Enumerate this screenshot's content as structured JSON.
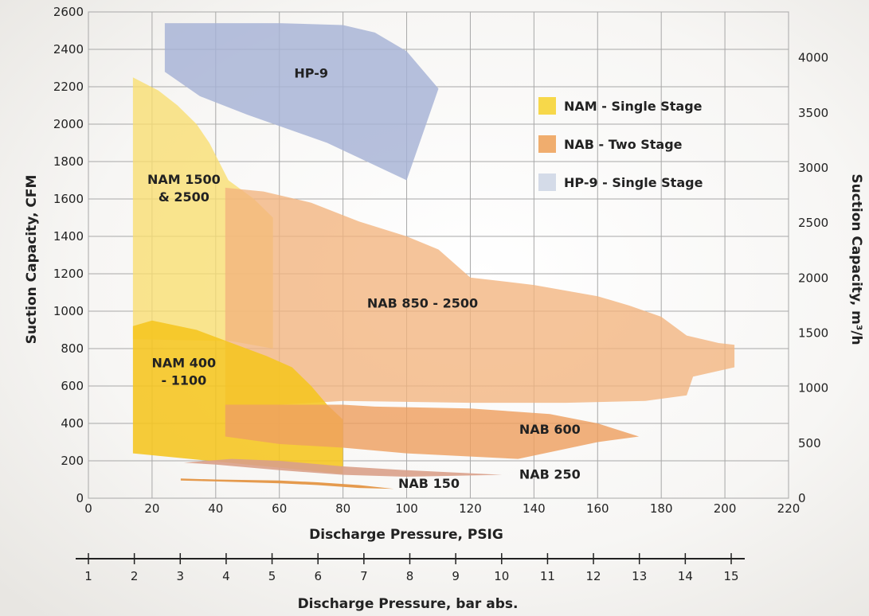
{
  "chart_data": {
    "type": "area",
    "xlabel": "Discharge Pressure, PSIG",
    "x2label": "Discharge Pressure, bar abs.",
    "ylabel": "Suction Capacity, CFM",
    "y2label": "Suction Capacity, m³/h",
    "xlim": [
      0,
      220
    ],
    "ylim": [
      0,
      2600
    ],
    "y2lim": [
      0,
      4417
    ],
    "grid": true,
    "x_ticks": [
      0,
      20,
      40,
      60,
      80,
      100,
      120,
      140,
      160,
      180,
      200,
      220
    ],
    "y_ticks": [
      0,
      200,
      400,
      600,
      800,
      1000,
      1200,
      1400,
      1600,
      1800,
      2000,
      2200,
      2400,
      2600
    ],
    "y2_ticks": [
      0,
      500,
      1000,
      1500,
      2000,
      2500,
      3000,
      3500,
      4000
    ],
    "bar_ticks": [
      1,
      2,
      3,
      4,
      5,
      6,
      7,
      8,
      9,
      10,
      11,
      12,
      13,
      14,
      15
    ],
    "legend_position": "top-right",
    "legend": [
      {
        "label": "NAM - Single Stage",
        "color": "#f7d84a"
      },
      {
        "label": "NAB - Two Stage",
        "color": "#f0ad6e"
      },
      {
        "label": "HP-9 - Single Stage",
        "color": "#d4dbe8"
      }
    ],
    "series": [
      {
        "label": "NAM 1500\n& 2500",
        "label_at": [
          30,
          1680
        ],
        "color": "#f8de70",
        "opacity": 0.78,
        "points": [
          [
            14,
            2250
          ],
          [
            22,
            2180
          ],
          [
            28,
            2100
          ],
          [
            34,
            2000
          ],
          [
            38,
            1900
          ],
          [
            44,
            1700
          ],
          [
            52,
            1600
          ],
          [
            58,
            1500
          ],
          [
            58,
            800
          ],
          [
            45,
            840
          ],
          [
            14,
            850
          ]
        ]
      },
      {
        "label": "NAB 850 - 2500",
        "label_at": [
          105,
          1020
        ],
        "color": "#f2b47e",
        "opacity": 0.78,
        "points": [
          [
            43,
            1660
          ],
          [
            55,
            1640
          ],
          [
            70,
            1580
          ],
          [
            85,
            1480
          ],
          [
            100,
            1400
          ],
          [
            110,
            1330
          ],
          [
            120,
            1180
          ],
          [
            140,
            1140
          ],
          [
            160,
            1080
          ],
          [
            170,
            1030
          ],
          [
            180,
            970
          ],
          [
            188,
            870
          ],
          [
            198,
            830
          ],
          [
            203,
            820
          ],
          [
            203,
            700
          ],
          [
            190,
            650
          ],
          [
            188,
            550
          ],
          [
            175,
            520
          ],
          [
            150,
            510
          ],
          [
            120,
            510
          ],
          [
            80,
            520
          ],
          [
            60,
            500
          ],
          [
            43,
            500
          ]
        ]
      },
      {
        "label": "NAM 400\n- 1100",
        "label_at": [
          30,
          700
        ],
        "color": "#f5c51f",
        "opacity": 0.88,
        "points": [
          [
            14,
            920
          ],
          [
            20,
            950
          ],
          [
            34,
            900
          ],
          [
            45,
            830
          ],
          [
            56,
            760
          ],
          [
            64,
            700
          ],
          [
            70,
            600
          ],
          [
            75,
            500
          ],
          [
            80,
            420
          ],
          [
            80,
            130
          ],
          [
            14,
            240
          ]
        ]
      },
      {
        "label": "NAB 600",
        "label_at": [
          145,
          345
        ],
        "color": "#eea060",
        "opacity": 0.82,
        "points": [
          [
            43,
            500
          ],
          [
            80,
            500
          ],
          [
            90,
            490
          ],
          [
            120,
            480
          ],
          [
            145,
            450
          ],
          [
            160,
            400
          ],
          [
            173,
            330
          ],
          [
            160,
            300
          ],
          [
            135,
            210
          ],
          [
            100,
            240
          ],
          [
            80,
            270
          ],
          [
            60,
            290
          ],
          [
            43,
            330
          ]
        ]
      },
      {
        "label": "NAB 250",
        "label_at": [
          145,
          105
        ],
        "color": "#d9a08a",
        "opacity": 0.9,
        "points": [
          [
            30,
            190
          ],
          [
            45,
            210
          ],
          [
            60,
            200
          ],
          [
            80,
            170
          ],
          [
            100,
            150
          ],
          [
            130,
            125
          ],
          [
            100,
            115
          ],
          [
            80,
            125
          ],
          [
            60,
            150
          ],
          [
            40,
            180
          ]
        ]
      },
      {
        "label": "NAB 150",
        "label_at": [
          107,
          55
        ],
        "color": "#e49543",
        "opacity": 0.95,
        "points": [
          [
            29,
            105
          ],
          [
            40,
            100
          ],
          [
            60,
            95
          ],
          [
            72,
            85
          ],
          [
            85,
            70
          ],
          [
            96,
            50
          ],
          [
            85,
            55
          ],
          [
            72,
            70
          ],
          [
            60,
            80
          ],
          [
            40,
            90
          ],
          [
            29,
            95
          ]
        ]
      },
      {
        "label": "HP-9",
        "label_at": [
          70,
          2250
        ],
        "color": "#a6b2d6",
        "opacity": 0.82,
        "points": [
          [
            24,
            2540
          ],
          [
            45,
            2540
          ],
          [
            60,
            2540
          ],
          [
            80,
            2530
          ],
          [
            90,
            2490
          ],
          [
            100,
            2390
          ],
          [
            110,
            2190
          ],
          [
            100,
            1700
          ],
          [
            75,
            1900
          ],
          [
            50,
            2050
          ],
          [
            35,
            2150
          ],
          [
            24,
            2280
          ]
        ]
      }
    ]
  }
}
